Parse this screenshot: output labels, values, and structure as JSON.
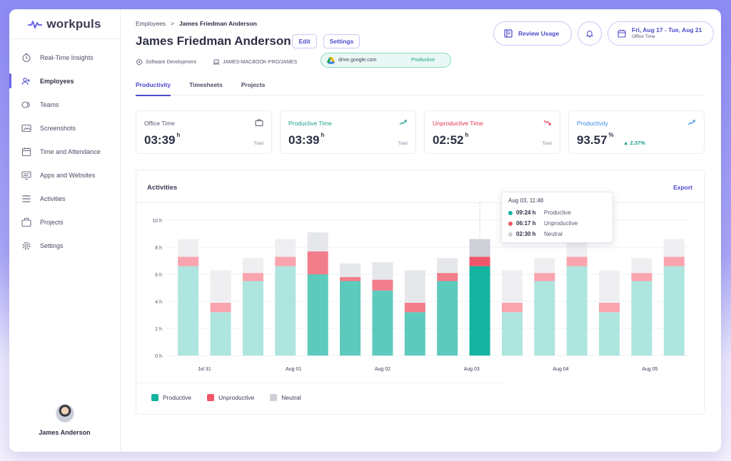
{
  "brand": {
    "name": "workpuls",
    "accent": "#6b67e8"
  },
  "sidebar": {
    "items": [
      {
        "label": "Real-Time Insights",
        "icon": "clock-icon"
      },
      {
        "label": "Employees",
        "icon": "users-icon",
        "active": true
      },
      {
        "label": "Teams",
        "icon": "teams-icon"
      },
      {
        "label": "Screenshots",
        "icon": "screenshot-icon"
      },
      {
        "label": "Time and Attendance",
        "icon": "calendar-icon"
      },
      {
        "label": "Apps and Websites",
        "icon": "monitor-icon"
      },
      {
        "label": "Activities",
        "icon": "list-icon"
      },
      {
        "label": "Projects",
        "icon": "briefcase-icon"
      },
      {
        "label": "Settings",
        "icon": "gear-icon"
      }
    ],
    "user": {
      "name": "James Anderson"
    }
  },
  "header": {
    "breadcrumb": {
      "parent": "Employees",
      "separator": ">",
      "current": "James Friedman Anderson"
    },
    "title": "James Friedman Anderson",
    "edit_label": "Edit",
    "settings_label": "Settings",
    "department": "Software Development",
    "computer": "JAMES-MACBOOK-PRO/JAMES",
    "current_app": {
      "name": "drive.google.com",
      "status": "Productive"
    },
    "review_label": "Review Usage",
    "date_range": "Fri, Aug 17 - Tue, Aug 21",
    "date_sub": "Office Time"
  },
  "tabs": [
    "Productivity",
    "Timesheets",
    "Projects"
  ],
  "cards": [
    {
      "label": "Office Time",
      "value": "03:39",
      "unit": "h",
      "total": "Total",
      "color": "#55576c"
    },
    {
      "label": "Productive Time",
      "value": "03:39",
      "unit": "h",
      "total": "Total",
      "color": "#1a9f86"
    },
    {
      "label": "Unproductive Time",
      "value": "02:52",
      "unit": "h",
      "total": "Total",
      "color": "#e0364d"
    },
    {
      "label": "Productivity",
      "value": "93.57",
      "unit": "%",
      "delta": "▲ 2.37%",
      "color": "#3c8ee0"
    }
  ],
  "activities": {
    "title": "Activities",
    "export_label": "Export",
    "tooltip": {
      "title": "Aug 03, 11:48",
      "rows": [
        {
          "value": "09:24 h",
          "label": "Productive",
          "color": "#15b3a2"
        },
        {
          "value": "06:17 h",
          "label": "Unproductive",
          "color": "#f0566a"
        },
        {
          "value": "02:30 h",
          "label": "Neutral",
          "color": "#cdd0d6"
        }
      ]
    },
    "legend": [
      {
        "label": "Productive",
        "color": "#15b3a2"
      },
      {
        "label": "Unproductive",
        "color": "#f0566a"
      },
      {
        "label": "Neutral",
        "color": "#cdd0d6"
      }
    ]
  },
  "chart_data": {
    "type": "bar",
    "stacked": true,
    "ylim": [
      0,
      10
    ],
    "yticks": [
      "0 h",
      "2 h",
      "4 h",
      "6 h",
      "8 h",
      "10 h"
    ],
    "xtick_labels": [
      "Jul 31",
      "Aug 01",
      "Aug 02",
      "Aug 03",
      "Aug 04",
      "Aug 05"
    ],
    "series": [
      {
        "name": "Productive",
        "color": "#15b3a2",
        "values": [
          6.6,
          3.2,
          5.5,
          6.6,
          6.0,
          5.5,
          4.8,
          3.2,
          5.5,
          6.6,
          3.2,
          5.5,
          6.6,
          3.2,
          5.5,
          6.6
        ]
      },
      {
        "name": "Unproductive",
        "color": "#f0566a",
        "values": [
          0.7,
          0.7,
          0.6,
          0.7,
          1.7,
          0.3,
          0.8,
          0.7,
          0.6,
          0.7,
          0.7,
          0.6,
          0.7,
          0.7,
          0.6,
          0.7
        ]
      },
      {
        "name": "Neutral",
        "color": "#cdd0d6",
        "values": [
          1.3,
          2.4,
          1.1,
          1.3,
          1.4,
          1.0,
          1.3,
          2.4,
          1.1,
          1.3,
          2.4,
          1.1,
          1.3,
          2.4,
          1.1,
          1.3
        ]
      }
    ],
    "highlight_index": 9,
    "grid": true
  }
}
